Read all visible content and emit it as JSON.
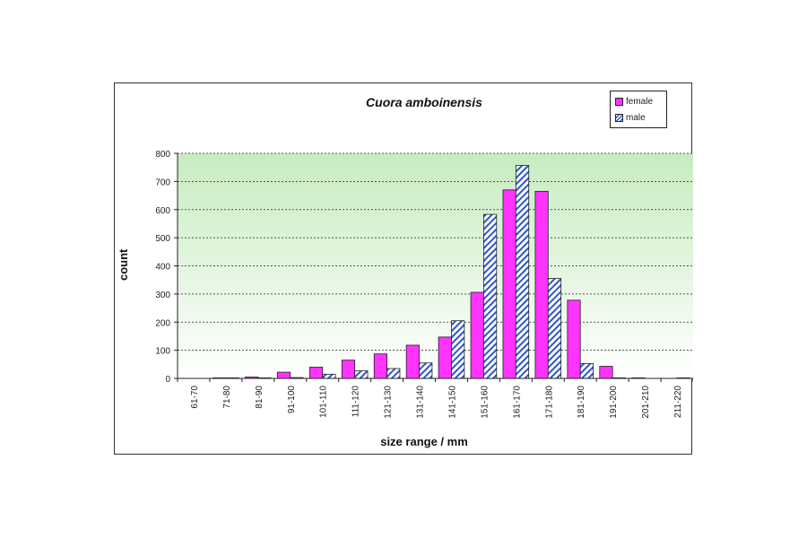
{
  "chart_data": {
    "type": "bar",
    "title": "Cuora amboinensis",
    "xlabel": "size range / mm",
    "ylabel": "count",
    "ylim": [
      0,
      800
    ],
    "yticks": [
      0,
      100,
      200,
      300,
      400,
      500,
      600,
      700,
      800
    ],
    "grid": true,
    "legend_position": "top-right",
    "categories": [
      "61-70",
      "71-80",
      "81-90",
      "91-100",
      "101-110",
      "111-120",
      "121-130",
      "131-140",
      "141-150",
      "151-160",
      "161-170",
      "171-180",
      "181-190",
      "191-200",
      "201-210",
      "211-220"
    ],
    "series": [
      {
        "name": "female",
        "color": "#ff33ff",
        "pattern": "solid",
        "values": [
          0,
          2,
          5,
          22,
          40,
          65,
          87,
          118,
          147,
          306,
          670,
          665,
          278,
          43,
          2,
          0
        ]
      },
      {
        "name": "male",
        "color": "#2f55c8",
        "pattern": "diagonal-stripes",
        "values": [
          0,
          2,
          2,
          3,
          15,
          27,
          35,
          55,
          205,
          583,
          757,
          355,
          53,
          2,
          0,
          2
        ]
      }
    ],
    "plot_background": "green-gradient"
  }
}
